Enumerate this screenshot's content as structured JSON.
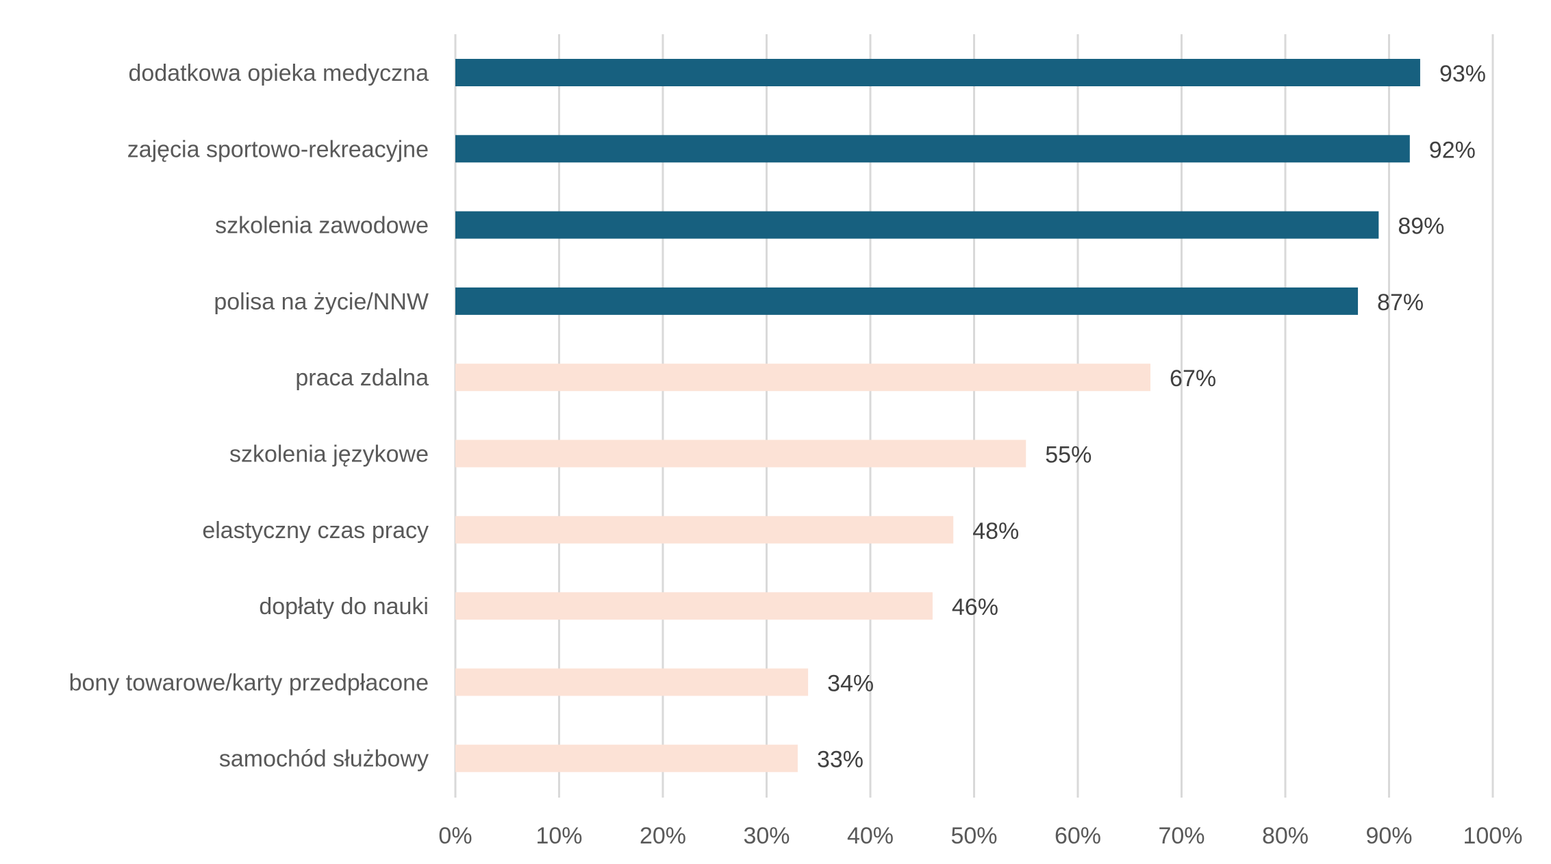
{
  "chart_data": {
    "type": "bar",
    "orientation": "horizontal",
    "title": "",
    "xlabel": "",
    "ylabel": "",
    "xlim": [
      0,
      100
    ],
    "grid": true,
    "legend": "none",
    "ticks": [
      "0%",
      "10%",
      "20%",
      "30%",
      "40%",
      "50%",
      "60%",
      "70%",
      "80%",
      "90%",
      "100%"
    ],
    "tick_values": [
      0,
      10,
      20,
      30,
      40,
      50,
      60,
      70,
      80,
      90,
      100
    ],
    "colors": {
      "highlight": "#17607f",
      "normal": "#fce2d6"
    },
    "categories": [
      "dodatkowa opieka medyczna",
      "zajęcia sportowo-rekreacyjne",
      "szkolenia zawodowe",
      "polisa na życie/NNW",
      "praca zdalna",
      "szkolenia językowe",
      "elastyczny czas pracy ",
      "dopłaty do nauki",
      "bony towarowe/karty przedpłacone",
      "samochód służbowy"
    ],
    "values": [
      93,
      92,
      89,
      87,
      67,
      55,
      48,
      46,
      34,
      33
    ],
    "value_labels": [
      "93%",
      "92%",
      "89%",
      "87%",
      "67%",
      "55%",
      "48%",
      "46%",
      "34%",
      "33%"
    ],
    "highlighted": [
      true,
      true,
      true,
      true,
      false,
      false,
      false,
      false,
      false,
      false
    ]
  }
}
